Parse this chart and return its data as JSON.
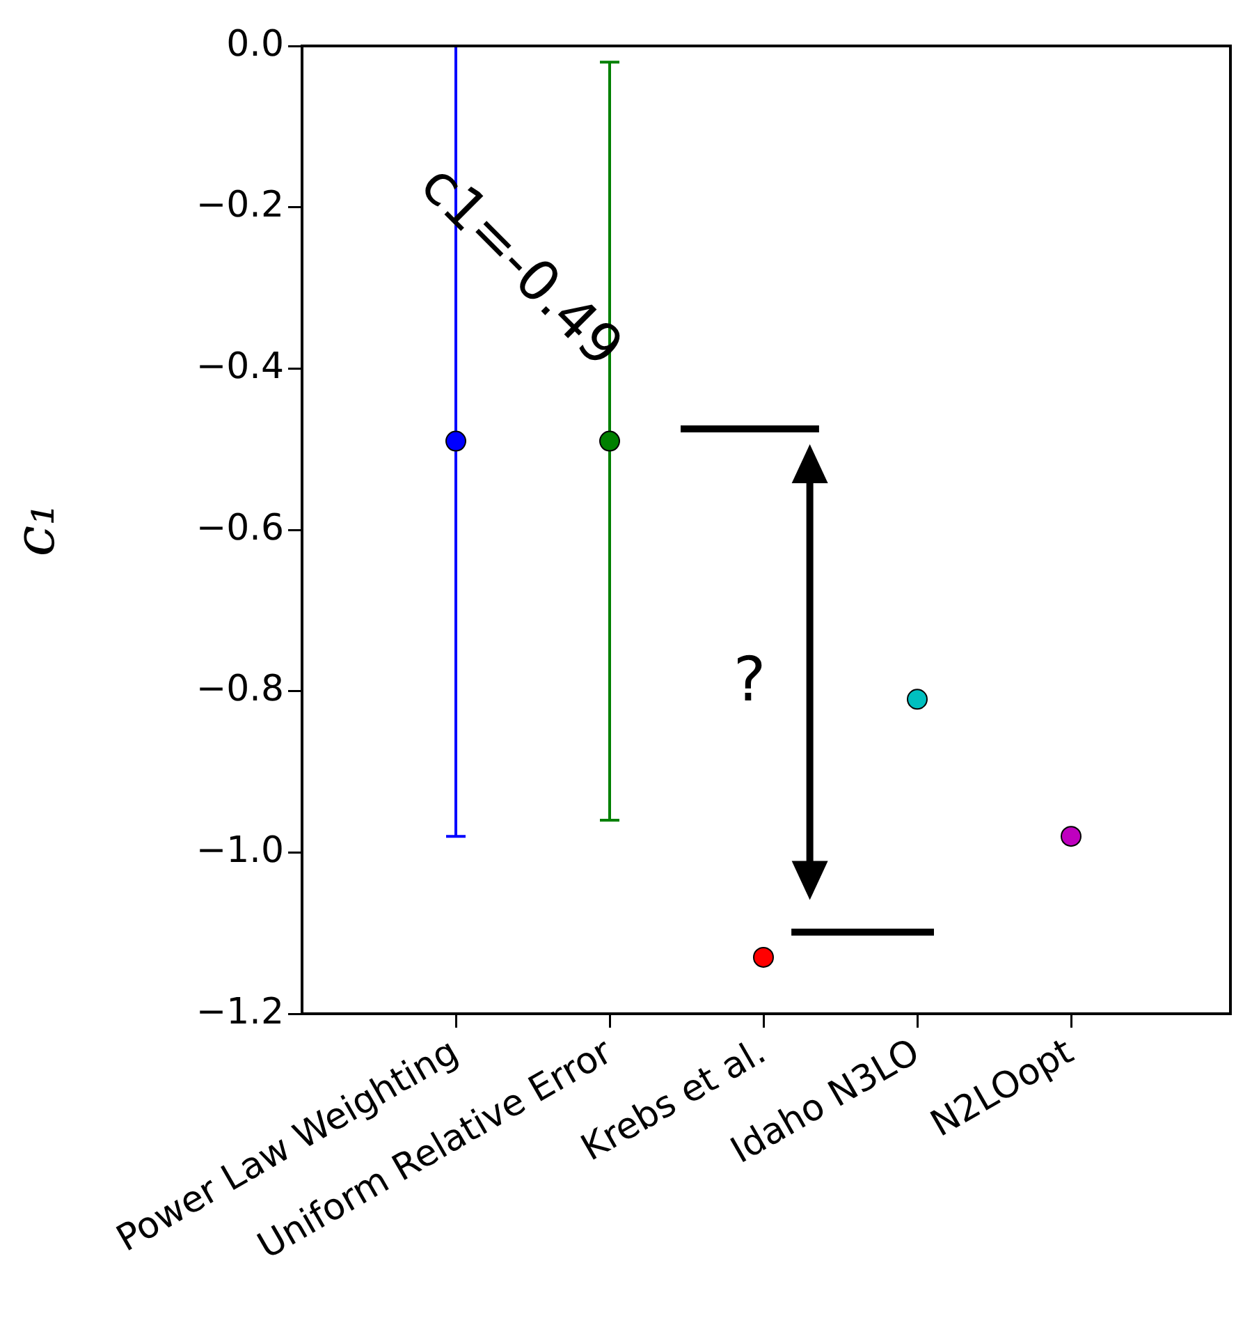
{
  "chart_data": {
    "type": "scatter",
    "ylabel": "c₁",
    "categories": [
      "Power Law Weighting",
      "Uniform Relative Error",
      "Krebs et al.",
      "Idaho N3LO",
      "N2LOopt"
    ],
    "values": [
      -0.49,
      -0.49,
      -1.13,
      -0.81,
      -0.98
    ],
    "colors": [
      "#0000ff",
      "#008000",
      "#ff0000",
      "#00bfbf",
      "#bf00bf"
    ],
    "errors": [
      0.49,
      0.47,
      null,
      null,
      null
    ],
    "marker": "circle",
    "ylim": [
      -1.2,
      0.0
    ],
    "yticks": [
      {
        "value": -1.2,
        "label": "−1.2"
      },
      {
        "value": -1.0,
        "label": "−1.0"
      },
      {
        "value": -0.8,
        "label": "−0.8"
      },
      {
        "value": -0.6,
        "label": "−0.6"
      },
      {
        "value": -0.4,
        "label": "−0.4"
      },
      {
        "value": -0.2,
        "label": "−0.2"
      },
      {
        "value": 0.0,
        "label": "0.0"
      }
    ],
    "annotations": [
      "c1=-0.49",
      "?"
    ]
  }
}
